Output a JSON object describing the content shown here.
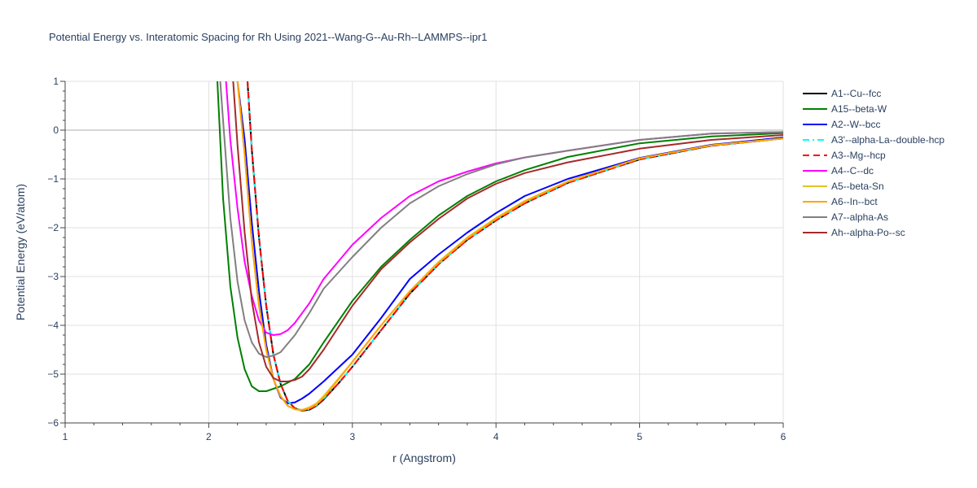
{
  "chart_data": {
    "type": "line",
    "title": "Potential Energy vs. Interatomic Spacing for Rh Using 2021--Wang-G--Au-Rh--LAMMPS--ipr1",
    "xlabel": "r (Angstrom)",
    "ylabel": "Potential Energy (eV/atom)",
    "xlim": [
      1,
      6
    ],
    "ylim": [
      -6,
      1
    ],
    "xticks": [
      1,
      2,
      3,
      4,
      5,
      6
    ],
    "yticks": [
      -6,
      -5,
      -4,
      -3,
      -2,
      -1,
      0,
      1
    ],
    "xtick_labels": [
      "1",
      "2",
      "3",
      "4",
      "5",
      "6"
    ],
    "ytick_labels": [
      "−6",
      "−5",
      "−4",
      "−3",
      "−2",
      "−1",
      "0",
      "1"
    ],
    "grid": true,
    "legend_position": "top-right",
    "series": [
      {
        "name": "A1--Cu--fcc",
        "color": "#000000",
        "dash": "solid",
        "x": [
          2.27,
          2.3,
          2.35,
          2.4,
          2.45,
          2.5,
          2.55,
          2.6,
          2.65,
          2.7,
          2.75,
          2.8,
          2.9,
          3.0,
          3.2,
          3.4,
          3.6,
          3.8,
          4.0,
          4.2,
          4.5,
          5.0,
          5.5,
          6.0
        ],
        "y": [
          1.0,
          -0.4,
          -2.2,
          -3.6,
          -4.6,
          -5.2,
          -5.55,
          -5.7,
          -5.75,
          -5.73,
          -5.65,
          -5.52,
          -5.2,
          -4.85,
          -4.1,
          -3.35,
          -2.75,
          -2.25,
          -1.85,
          -1.5,
          -1.08,
          -0.6,
          -0.32,
          -0.17
        ]
      },
      {
        "name": "A15--beta-W",
        "color": "#008000",
        "dash": "solid",
        "x": [
          2.06,
          2.1,
          2.15,
          2.2,
          2.25,
          2.3,
          2.35,
          2.4,
          2.45,
          2.5,
          2.6,
          2.7,
          2.8,
          3.0,
          3.2,
          3.4,
          3.6,
          3.8,
          4.0,
          4.2,
          4.5,
          5.0,
          5.5,
          6.0
        ],
        "y": [
          1.0,
          -1.4,
          -3.2,
          -4.25,
          -4.9,
          -5.25,
          -5.35,
          -5.35,
          -5.3,
          -5.25,
          -5.1,
          -4.8,
          -4.35,
          -3.5,
          -2.8,
          -2.25,
          -1.75,
          -1.35,
          -1.05,
          -0.82,
          -0.55,
          -0.27,
          -0.13,
          -0.06
        ]
      },
      {
        "name": "A2--W--bcc",
        "color": "#0000ff",
        "dash": "solid",
        "x": [
          2.2,
          2.25,
          2.3,
          2.35,
          2.4,
          2.45,
          2.5,
          2.55,
          2.6,
          2.65,
          2.7,
          2.8,
          3.0,
          3.2,
          3.4,
          3.6,
          3.8,
          4.0,
          4.2,
          4.5,
          5.0,
          5.5,
          6.0
        ],
        "y": [
          1.0,
          -0.2,
          -1.9,
          -3.3,
          -4.4,
          -5.1,
          -5.48,
          -5.6,
          -5.58,
          -5.5,
          -5.4,
          -5.15,
          -4.6,
          -3.85,
          -3.05,
          -2.55,
          -2.1,
          -1.7,
          -1.35,
          -1.0,
          -0.57,
          -0.3,
          -0.15
        ]
      },
      {
        "name": "A3'--alpha-La--double-hcp",
        "color": "#00ffff",
        "dash": "dashdot",
        "x": [
          2.27,
          2.3,
          2.35,
          2.4,
          2.45,
          2.5,
          2.55,
          2.6,
          2.65,
          2.7,
          2.75,
          2.8,
          2.9,
          3.0,
          3.2,
          3.4,
          3.6,
          3.8,
          4.0,
          4.2,
          4.5,
          5.0,
          5.5,
          6.0
        ],
        "y": [
          1.0,
          -0.4,
          -2.2,
          -3.6,
          -4.6,
          -5.2,
          -5.55,
          -5.7,
          -5.74,
          -5.72,
          -5.64,
          -5.5,
          -5.2,
          -4.85,
          -4.1,
          -3.35,
          -2.75,
          -2.25,
          -1.85,
          -1.5,
          -1.08,
          -0.6,
          -0.32,
          -0.17
        ]
      },
      {
        "name": "A3--Mg--hcp",
        "color": "#ff0000",
        "dash": "dash",
        "x": [
          2.27,
          2.3,
          2.35,
          2.4,
          2.45,
          2.5,
          2.55,
          2.6,
          2.65,
          2.7,
          2.75,
          2.8,
          2.9,
          3.0,
          3.2,
          3.4,
          3.6,
          3.8,
          4.0,
          4.2,
          4.5,
          5.0,
          5.5,
          6.0
        ],
        "y": [
          1.0,
          -0.4,
          -2.2,
          -3.6,
          -4.6,
          -5.2,
          -5.55,
          -5.7,
          -5.74,
          -5.72,
          -5.64,
          -5.5,
          -5.2,
          -4.85,
          -4.1,
          -3.35,
          -2.75,
          -2.25,
          -1.85,
          -1.5,
          -1.08,
          -0.6,
          -0.32,
          -0.17
        ]
      },
      {
        "name": "A4--C--dc",
        "color": "#ff00ff",
        "dash": "solid",
        "x": [
          2.12,
          2.15,
          2.2,
          2.25,
          2.3,
          2.35,
          2.4,
          2.45,
          2.5,
          2.55,
          2.6,
          2.7,
          2.8,
          3.0,
          3.2,
          3.4,
          3.6,
          3.8,
          4.0,
          4.2,
          4.5,
          5.0,
          5.5,
          6.0
        ],
        "y": [
          1.0,
          -0.2,
          -1.6,
          -2.7,
          -3.4,
          -3.9,
          -4.15,
          -4.2,
          -4.18,
          -4.1,
          -3.95,
          -3.55,
          -3.05,
          -2.35,
          -1.8,
          -1.35,
          -1.05,
          -0.85,
          -0.68,
          -0.56,
          -0.42,
          -0.2,
          -0.07,
          -0.04
        ]
      },
      {
        "name": "A5--beta-Sn",
        "color": "#e6c229",
        "dash": "solid",
        "x": [
          2.2,
          2.25,
          2.3,
          2.35,
          2.4,
          2.45,
          2.5,
          2.55,
          2.6,
          2.65,
          2.7,
          2.75,
          2.8,
          2.9,
          3.0,
          3.2,
          3.4,
          3.6,
          3.8,
          4.0,
          4.2,
          4.5,
          5.0,
          5.5,
          6.0
        ],
        "y": [
          1.0,
          -0.5,
          -2.3,
          -3.6,
          -4.5,
          -5.1,
          -5.45,
          -5.65,
          -5.72,
          -5.73,
          -5.68,
          -5.6,
          -5.45,
          -5.1,
          -4.75,
          -4.0,
          -3.3,
          -2.7,
          -2.2,
          -1.8,
          -1.45,
          -1.05,
          -0.58,
          -0.31,
          -0.17
        ]
      },
      {
        "name": "A6--In--bct",
        "color": "#ffa500",
        "dash": "solid",
        "x": [
          2.2,
          2.25,
          2.3,
          2.35,
          2.4,
          2.45,
          2.5,
          2.55,
          2.6,
          2.65,
          2.7,
          2.75,
          2.8,
          2.9,
          3.0,
          3.2,
          3.4,
          3.6,
          3.8,
          4.0,
          4.2,
          4.5,
          5.0,
          5.5,
          6.0
        ],
        "y": [
          1.0,
          -0.5,
          -2.3,
          -3.6,
          -4.5,
          -5.1,
          -5.45,
          -5.65,
          -5.72,
          -5.74,
          -5.7,
          -5.62,
          -5.48,
          -5.12,
          -4.75,
          -4.0,
          -3.3,
          -2.72,
          -2.22,
          -1.82,
          -1.47,
          -1.06,
          -0.58,
          -0.31,
          -0.17
        ]
      },
      {
        "name": "A7--alpha-As",
        "color": "#808080",
        "dash": "solid",
        "x": [
          2.08,
          2.1,
          2.15,
          2.2,
          2.25,
          2.3,
          2.35,
          2.4,
          2.45,
          2.5,
          2.6,
          2.7,
          2.8,
          3.0,
          3.2,
          3.4,
          3.6,
          3.8,
          4.0,
          4.2,
          4.5,
          5.0,
          5.5,
          6.0
        ],
        "y": [
          1.0,
          0.2,
          -1.8,
          -3.1,
          -3.9,
          -4.35,
          -4.58,
          -4.65,
          -4.62,
          -4.55,
          -4.2,
          -3.75,
          -3.25,
          -2.6,
          -2.0,
          -1.5,
          -1.15,
          -0.9,
          -0.7,
          -0.56,
          -0.42,
          -0.2,
          -0.07,
          -0.04
        ]
      },
      {
        "name": "Ah--alpha-Po--sc",
        "color": "#a52a2a",
        "dash": "solid",
        "x": [
          2.17,
          2.2,
          2.25,
          2.3,
          2.35,
          2.4,
          2.45,
          2.5,
          2.55,
          2.6,
          2.65,
          2.7,
          2.8,
          3.0,
          3.2,
          3.4,
          3.6,
          3.8,
          4.0,
          4.2,
          4.5,
          5.0,
          5.5,
          6.0
        ],
        "y": [
          1.0,
          -0.3,
          -2.1,
          -3.5,
          -4.35,
          -4.85,
          -5.08,
          -5.15,
          -5.15,
          -5.12,
          -5.05,
          -4.9,
          -4.5,
          -3.6,
          -2.85,
          -2.3,
          -1.82,
          -1.4,
          -1.1,
          -0.88,
          -0.66,
          -0.38,
          -0.2,
          -0.1
        ]
      }
    ]
  }
}
